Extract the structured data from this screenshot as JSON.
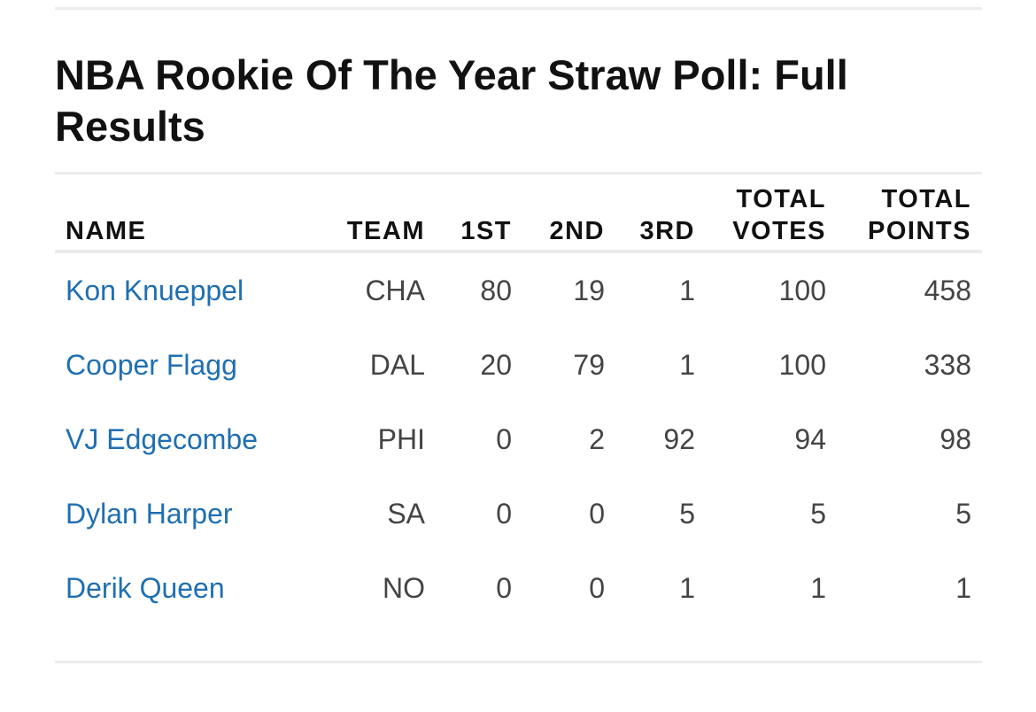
{
  "title": "NBA Rookie Of The Year Straw Poll: Full Results",
  "table": {
    "headers": {
      "name": "NAME",
      "team": "TEAM",
      "first": "1ST",
      "second": "2ND",
      "third": "3RD",
      "total_votes": "TOTAL VOTES",
      "total_points": "TOTAL POINTS"
    },
    "rows": [
      {
        "name": "Kon Knueppel",
        "team": "CHA",
        "first": "80",
        "second": "19",
        "third": "1",
        "total_votes": "100",
        "total_points": "458"
      },
      {
        "name": "Cooper Flagg",
        "team": "DAL",
        "first": "20",
        "second": "79",
        "third": "1",
        "total_votes": "100",
        "total_points": "338"
      },
      {
        "name": "VJ Edgecombe",
        "team": "PHI",
        "first": "0",
        "second": "2",
        "third": "92",
        "total_votes": "94",
        "total_points": "98"
      },
      {
        "name": "Dylan Harper",
        "team": "SA",
        "first": "0",
        "second": "0",
        "third": "5",
        "total_votes": "5",
        "total_points": "5"
      },
      {
        "name": "Derik Queen",
        "team": "NO",
        "first": "0",
        "second": "0",
        "third": "1",
        "total_votes": "1",
        "total_points": "1"
      }
    ]
  },
  "colors": {
    "link": "#1f6fb2",
    "text": "#444444",
    "rule": "#ececec"
  }
}
